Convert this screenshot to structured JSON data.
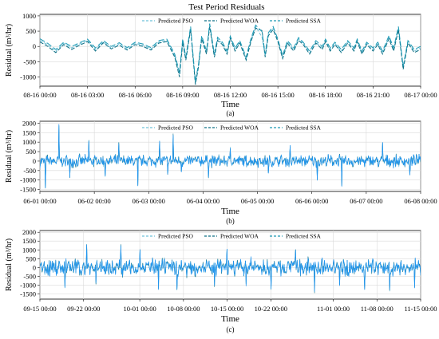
{
  "figure_title": "Test Period Residuals",
  "chart_data": [
    {
      "type": "line",
      "panel_label": "(a)",
      "xlabel": "Time",
      "ylabel": "Residual (m³/hr)",
      "x_ticks": [
        "08-16 00:00",
        "08-16 03:00",
        "08-16 06:00",
        "08-16 09:00",
        "08-16 12:00",
        "08-16 15:00",
        "08-16 18:00",
        "08-16 21:00",
        "08-17 00:00"
      ],
      "y_ticks": [
        1000,
        500,
        0,
        -500,
        -1000
      ],
      "ylim": [
        -1300,
        1050
      ],
      "xlim": [
        "08-16 00:00",
        "08-17 00:00"
      ],
      "grid": true,
      "legend_position": "top-center",
      "x_hours": [
        0,
        0.5,
        1,
        1.5,
        2,
        2.5,
        3,
        3.5,
        4,
        4.5,
        5,
        5.5,
        6,
        6.5,
        7,
        7.5,
        8,
        8.5,
        8.8,
        9,
        9.2,
        9.5,
        9.8,
        10,
        10.2,
        10.5,
        10.7,
        11,
        11.2,
        11.5,
        11.8,
        12,
        12.3,
        12.6,
        13,
        13.3,
        13.6,
        14,
        14.2,
        14.4,
        14.7,
        15,
        15.3,
        15.6,
        16,
        16.3,
        16.6,
        17,
        17.4,
        17.8,
        18,
        18.3,
        18.6,
        19,
        19.4,
        19.8,
        20,
        20.3,
        20.6,
        21,
        21.3,
        21.6,
        22,
        22.3,
        22.6,
        22.9,
        23.2,
        23.6,
        24
      ],
      "series": [
        {
          "name": "Predicted PSO",
          "color": "#6fc2d9",
          "dash": "4 2",
          "values": [
            200,
            50,
            -150,
            100,
            -50,
            80,
            200,
            -100,
            150,
            -50,
            80,
            -80,
            100,
            40,
            -80,
            150,
            200,
            -300,
            -900,
            200,
            -400,
            600,
            -1200,
            -600,
            300,
            -200,
            700,
            -300,
            250,
            100,
            -200,
            300,
            -100,
            150,
            -400,
            200,
            650,
            300,
            -300,
            400,
            600,
            200,
            -350,
            150,
            -100,
            250,
            100,
            -200,
            150,
            -50,
            200,
            -100,
            100,
            -150,
            150,
            -100,
            200,
            -200,
            100,
            -100,
            100,
            -200,
            300,
            -100,
            600,
            -700,
            150,
            -150,
            -50
          ]
        },
        {
          "name": "Predicted WOA",
          "color": "#0b6e84",
          "dash": "5 2",
          "values": [
            150,
            0,
            -200,
            60,
            -100,
            40,
            160,
            -150,
            120,
            -80,
            40,
            -120,
            60,
            0,
            -120,
            110,
            160,
            -350,
            -1000,
            150,
            -450,
            550,
            -1250,
            -650,
            250,
            -250,
            650,
            -350,
            200,
            60,
            -250,
            260,
            -150,
            110,
            -450,
            150,
            600,
            520,
            -350,
            350,
            550,
            160,
            -400,
            100,
            -150,
            200,
            60,
            -250,
            110,
            -100,
            160,
            -150,
            60,
            -200,
            110,
            -150,
            160,
            -250,
            60,
            -150,
            60,
            -250,
            250,
            -150,
            550,
            -750,
            110,
            -200,
            -100
          ]
        },
        {
          "name": "Predicted SSA",
          "color": "#1d9ab5",
          "dash": "7 3",
          "values": [
            250,
            100,
            -100,
            140,
            0,
            120,
            240,
            -50,
            190,
            0,
            120,
            -40,
            140,
            80,
            -40,
            190,
            240,
            -250,
            -850,
            250,
            -350,
            650,
            -1150,
            -550,
            350,
            -150,
            750,
            -250,
            300,
            140,
            -150,
            340,
            -50,
            190,
            -350,
            250,
            700,
            480,
            -250,
            450,
            650,
            240,
            -300,
            190,
            -50,
            290,
            140,
            -150,
            190,
            0,
            240,
            -50,
            140,
            -100,
            190,
            -50,
            240,
            -150,
            140,
            -50,
            140,
            -150,
            350,
            -50,
            650,
            -650,
            190,
            -100,
            0
          ]
        }
      ]
    },
    {
      "type": "line",
      "panel_label": "(b)",
      "xlabel": "Time",
      "ylabel": "Residual (m³/hr)",
      "x_ticks": [
        "06-01 00:00",
        "06-02 00:00",
        "06-03 00:00",
        "06-04 00:00",
        "06-05 00:00",
        "06-06 00:00",
        "06-07 00:00",
        "06-08 00:00"
      ],
      "y_ticks": [
        2000,
        1500,
        1000,
        500,
        0,
        -500,
        -1000,
        -1500
      ],
      "ylim": [
        -1600,
        2100
      ],
      "xlim": [
        "06-01 00:00",
        "06-08 00:00"
      ],
      "grid": true,
      "legend_position": "top-center",
      "series_names": [
        "Predicted PSO",
        "Predicted WOA",
        "Predicted SSA"
      ],
      "series_colors": [
        "#6fc2d9",
        "#0b6e84",
        "#1d9ab5"
      ],
      "noise_amplitude": 250,
      "spikes": [
        [
          0.1,
          -1400
        ],
        [
          0.35,
          1900
        ],
        [
          0.55,
          -900
        ],
        [
          0.9,
          1100
        ],
        [
          1.2,
          -800
        ],
        [
          1.45,
          950
        ],
        [
          1.8,
          -1300
        ],
        [
          2.2,
          1050
        ],
        [
          2.35,
          -700
        ],
        [
          2.45,
          1400
        ],
        [
          2.6,
          -600
        ],
        [
          3.1,
          -900
        ],
        [
          3.5,
          700
        ],
        [
          4.2,
          -600
        ],
        [
          4.6,
          800
        ],
        [
          5.1,
          -1000
        ],
        [
          5.55,
          -1300
        ],
        [
          6.3,
          1000
        ],
        [
          6.8,
          -700
        ]
      ]
    },
    {
      "type": "line",
      "panel_label": "(c)",
      "xlabel": "Time",
      "ylabel": "Residual (m³/hr)",
      "x_ticks": [
        "09-15 00:00",
        "09-22 00:00",
        "10-01 00:00",
        "10-08 00:00",
        "10-15 00:00",
        "10-22 00:00",
        "11-01 00:00",
        "11-08 00:00",
        "11-15 00:00"
      ],
      "x_days": [
        0,
        7,
        16,
        23,
        30,
        37,
        47,
        54,
        61
      ],
      "y_ticks": [
        2000,
        1500,
        1000,
        500,
        0,
        -500,
        -1000,
        -1500
      ],
      "ylim": [
        -1800,
        2100
      ],
      "xlim": [
        "09-15 00:00",
        "11-15 00:00"
      ],
      "grid": true,
      "legend_position": "top-center",
      "series_names": [
        "Predicted PSO",
        "Predicted WOA",
        "Predicted SSA"
      ],
      "series_colors": [
        "#6fc2d9",
        "#0b6e84",
        "#1d9ab5"
      ],
      "noise_amplitude": 380,
      "spikes": [
        [
          4,
          -1100
        ],
        [
          7.5,
          1250
        ],
        [
          9,
          -900
        ],
        [
          13,
          1300
        ],
        [
          16,
          1050
        ],
        [
          19,
          -1200
        ],
        [
          22,
          -1300
        ],
        [
          28,
          -1100
        ],
        [
          30,
          1050
        ],
        [
          33,
          -1000
        ],
        [
          37,
          -1200
        ],
        [
          41,
          1000
        ],
        [
          44,
          -1400
        ],
        [
          48,
          -1000
        ],
        [
          52,
          -1200
        ],
        [
          56,
          -1300
        ],
        [
          60,
          -1100
        ]
      ]
    }
  ]
}
